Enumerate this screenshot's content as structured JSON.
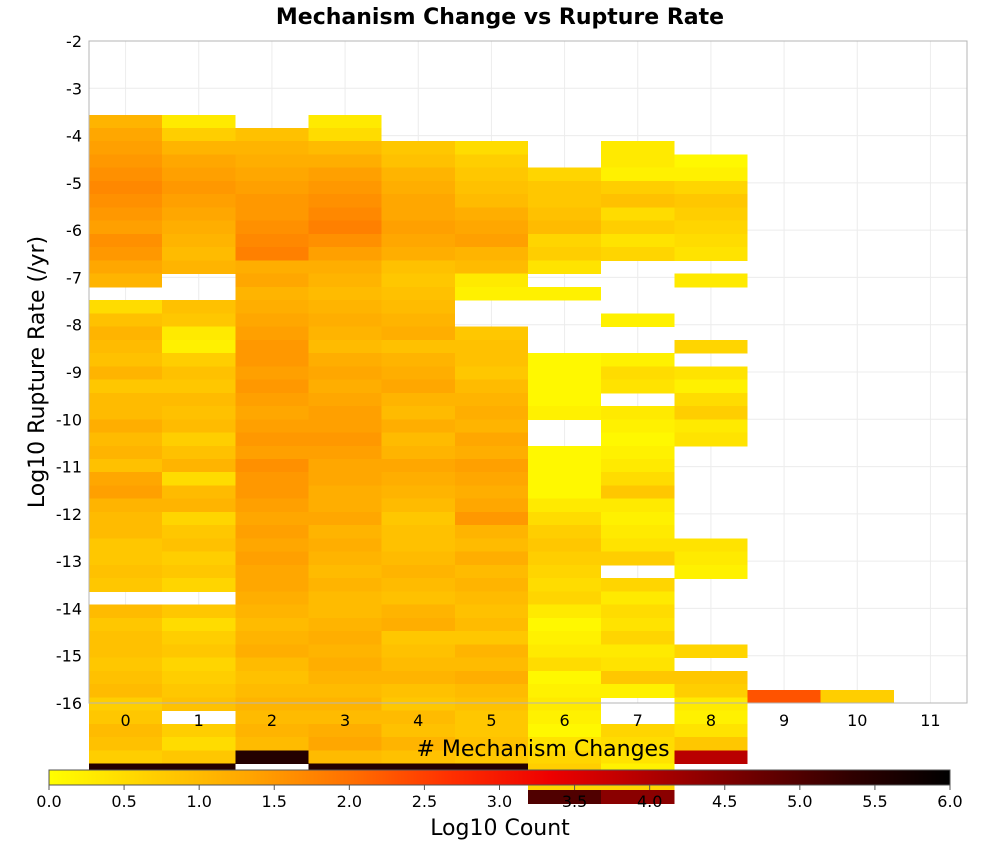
{
  "chart_data": {
    "type": "heatmap",
    "title": "Mechanism Change vs Rupture Rate",
    "xlabel": "# Mechanism Changes",
    "ylabel": "Log10 Rupture Rate (/yr)",
    "x_ticks": [
      "0",
      "1",
      "2",
      "3",
      "4",
      "5",
      "6",
      "7",
      "8",
      "9",
      "10",
      "11"
    ],
    "y_ticks": [
      "-2",
      "-3",
      "-4",
      "-5",
      "-6",
      "-7",
      "-8",
      "-9",
      "-10",
      "-11",
      "-12",
      "-13",
      "-14",
      "-15",
      "-16"
    ],
    "xlim": [
      -0.5,
      11.5
    ],
    "ylim": [
      -16,
      -2
    ],
    "y_bin_width": 0.28,
    "grid": true,
    "colorbar": {
      "label": "Log10 Count",
      "range": [
        0,
        6
      ],
      "ticks": [
        "0.0",
        "0.5",
        "1.0",
        "1.5",
        "2.0",
        "2.5",
        "3.0",
        "3.5",
        "4.0",
        "4.5",
        "5.0",
        "5.5",
        "6.0"
      ],
      "colors": [
        "#ffff00",
        "#ffd000",
        "#ffa500",
        "#ff7000",
        "#ff3000",
        "#ee0000",
        "#b00000",
        "#700000",
        "#300000",
        "#000000"
      ]
    },
    "columns": [
      {
        "x": 0,
        "y_top": -3.56,
        "values": [
          1.1,
          1.3,
          1.4,
          1.5,
          1.6,
          1.7,
          1.6,
          1.5,
          1.4,
          1.6,
          1.5,
          1.3,
          1.1,
          null,
          0.5,
          0.9,
          1.1,
          1.0,
          0.9,
          1.1,
          0.8,
          1.0,
          1.0,
          1.2,
          1.0,
          1.1,
          0.9,
          1.3,
          1.4,
          1.1,
          1.0,
          1.0,
          0.8,
          0.8,
          0.9,
          0.8,
          null,
          1.0,
          0.8,
          0.9,
          0.9,
          0.8,
          0.9,
          1.0,
          0.7,
          0.8,
          1.0,
          0.9,
          0.7,
          5.5
        ]
      },
      {
        "x": 1,
        "y_top": -3.56,
        "values": [
          0.3,
          0.7,
          1.1,
          1.3,
          1.4,
          1.5,
          1.4,
          1.3,
          1.2,
          1.1,
          1.0,
          1.1,
          null,
          null,
          0.9,
          0.8,
          0.3,
          0.2,
          0.7,
          0.9,
          0.8,
          1.0,
          0.9,
          1.0,
          0.7,
          0.9,
          1.1,
          0.5,
          1.0,
          1.1,
          0.6,
          0.8,
          0.9,
          0.7,
          0.8,
          0.6,
          null,
          0.8,
          0.5,
          0.7,
          0.8,
          0.6,
          0.7,
          0.8,
          0.9,
          null,
          0.7,
          0.5,
          0.8,
          5.5
        ]
      },
      {
        "x": 2,
        "y_top": -3.84,
        "values": [
          0.9,
          1.1,
          1.2,
          1.3,
          1.4,
          1.5,
          1.5,
          1.6,
          1.7,
          1.8,
          1.2,
          1.3,
          1.1,
          1.2,
          1.3,
          1.4,
          1.5,
          1.5,
          1.4,
          1.5,
          1.4,
          1.3,
          1.4,
          1.5,
          1.4,
          1.6,
          1.5,
          1.5,
          1.4,
          1.3,
          1.4,
          1.3,
          1.4,
          1.3,
          1.3,
          1.2,
          1.1,
          1.0,
          1.1,
          1.2,
          1.0,
          0.9,
          1.0,
          1.1,
          1.0,
          1.1,
          1.0,
          5.5
        ]
      },
      {
        "x": 3,
        "y_top": -3.56,
        "values": [
          0.3,
          0.5,
          1.0,
          1.2,
          1.4,
          1.5,
          1.6,
          1.7,
          1.8,
          1.6,
          1.4,
          1.2,
          1.1,
          1.0,
          1.1,
          1.2,
          1.1,
          1.0,
          1.2,
          1.3,
          1.2,
          1.3,
          1.4,
          1.4,
          1.5,
          1.4,
          1.3,
          1.3,
          1.2,
          1.2,
          1.3,
          1.1,
          1.2,
          1.1,
          1.0,
          1.1,
          1.0,
          1.0,
          1.1,
          1.2,
          1.1,
          1.2,
          1.1,
          1.0,
          1.1,
          1.0,
          1.2,
          1.3,
          1.0,
          5.5
        ]
      },
      {
        "x": 4,
        "y_top": -4.12,
        "values": [
          0.8,
          0.9,
          1.1,
          1.2,
          1.3,
          1.3,
          1.4,
          1.3,
          1.2,
          0.9,
          0.8,
          0.9,
          1.0,
          1.1,
          1.2,
          0.9,
          1.1,
          1.2,
          1.3,
          1.1,
          1.0,
          1.2,
          1.0,
          1.1,
          1.3,
          1.2,
          1.1,
          1.0,
          0.8,
          0.9,
          0.9,
          1.0,
          1.1,
          1.0,
          0.9,
          1.1,
          1.2,
          0.8,
          0.9,
          1.0,
          1.1,
          0.9,
          0.8,
          1.0,
          0.9,
          1.1,
          0.9,
          5.5
        ]
      },
      {
        "x": 5,
        "y_top": -4.12,
        "values": [
          0.5,
          0.7,
          0.8,
          0.9,
          1.0,
          1.2,
          1.3,
          1.4,
          1.1,
          1.0,
          0.3,
          0.2,
          null,
          null,
          0.8,
          0.9,
          0.9,
          0.8,
          1.0,
          1.1,
          1.2,
          1.1,
          1.3,
          1.2,
          1.4,
          1.3,
          1.2,
          1.3,
          1.5,
          1.1,
          1.0,
          1.2,
          1.0,
          1.1,
          1.0,
          0.9,
          1.0,
          0.8,
          1.1,
          1.0,
          1.2,
          1.0,
          0.9,
          0.8,
          0.8,
          0.9,
          0.8,
          5.5
        ]
      },
      {
        "x": 6,
        "y_top": -4.68,
        "values": [
          0.6,
          0.8,
          0.8,
          0.9,
          1.0,
          0.6,
          0.7,
          0.4,
          null,
          0.2,
          null,
          null,
          null,
          null,
          0.1,
          0.1,
          0.1,
          0.1,
          0.2,
          null,
          null,
          0.1,
          0.1,
          0.1,
          0.1,
          0.3,
          0.5,
          0.7,
          0.8,
          0.7,
          0.6,
          0.5,
          0.6,
          0.3,
          0.1,
          0.2,
          0.3,
          0.5,
          0.1,
          0.2,
          0.3,
          0.2,
          0.1,
          0.4,
          0.6,
          0.7,
          0.6,
          5.0
        ]
      },
      {
        "x": 7,
        "y_top": -4.12,
        "values": [
          0.3,
          0.3,
          0.2,
          0.7,
          0.9,
          0.5,
          0.7,
          0.4,
          0.6,
          null,
          null,
          null,
          null,
          0.2,
          null,
          null,
          0.2,
          0.5,
          0.4,
          null,
          0.3,
          0.2,
          0.1,
          0.2,
          0.3,
          0.5,
          0.8,
          0.3,
          0.2,
          0.3,
          0.4,
          0.7,
          null,
          0.6,
          0.3,
          0.5,
          0.4,
          0.6,
          0.3,
          0.4,
          0.8,
          0.2,
          null,
          null,
          0.6,
          0.5,
          0.4,
          0.2,
          0.6,
          4.4
        ]
      },
      {
        "x": 8,
        "y_top": -4.4,
        "values": [
          0.1,
          0.2,
          0.6,
          0.8,
          0.7,
          0.6,
          0.5,
          0.4,
          null,
          0.3,
          null,
          null,
          null,
          null,
          0.6,
          null,
          0.4,
          0.2,
          0.5,
          0.7,
          0.3,
          0.4,
          null,
          null,
          null,
          null,
          null,
          null,
          null,
          0.4,
          0.3,
          0.2,
          null,
          null,
          null,
          null,
          null,
          0.6,
          null,
          0.8,
          0.7,
          0.3,
          0.2,
          0.4,
          0.8,
          3.9
        ]
      },
      {
        "x": 9,
        "y_top": -15.72,
        "values": [
          2.3
        ]
      },
      {
        "x": 10,
        "y_top": -15.72,
        "values": [
          0.7
        ]
      },
      {
        "x": 11,
        "y_top": -15.72,
        "values": [
          null
        ]
      }
    ]
  }
}
